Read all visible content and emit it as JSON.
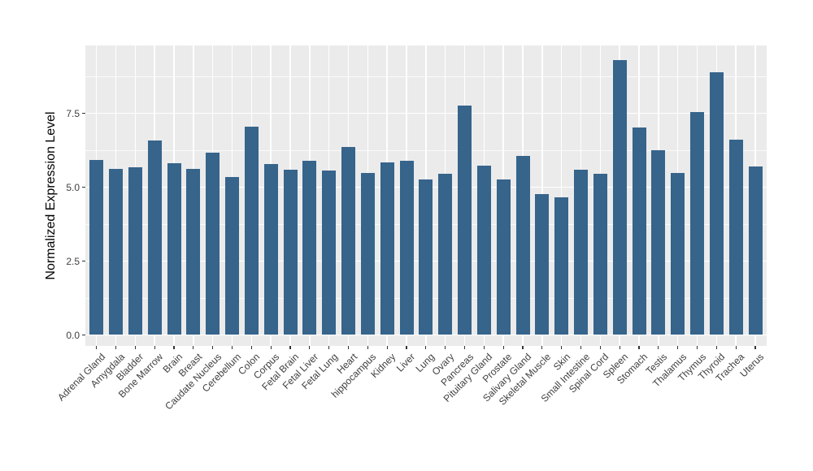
{
  "chart_data": {
    "type": "bar",
    "title": "",
    "xlabel": "",
    "ylabel": "Normalized Expression Level",
    "categories": [
      "Adrenal Gland",
      "Amygdala",
      "Bladder",
      "Bone Marrow",
      "Brain",
      "Breast",
      "Caudate Nucleus",
      "Cerebellum",
      "Colon",
      "Corpus",
      "Fetal Brain",
      "Fetal Liver",
      "Fetal Lung",
      "Heart",
      "hippocampus",
      "Kidney",
      "Liver",
      "Lung",
      "Ovary",
      "Pancreas",
      "Pituitary Gland",
      "Prostate",
      "Salivary Gland",
      "Skeletal Muscle",
      "Skin",
      "Small Intestine",
      "Spinal Cord",
      "Spleen",
      "Stomach",
      "Testis",
      "Thalamus",
      "Thymus",
      "Thyroid",
      "Trachea",
      "Uterus"
    ],
    "values": [
      5.91,
      5.63,
      5.66,
      6.59,
      5.82,
      5.63,
      6.18,
      5.33,
      7.06,
      5.77,
      5.6,
      5.88,
      5.55,
      6.37,
      5.47,
      5.85,
      5.88,
      5.27,
      5.44,
      7.75,
      5.74,
      5.25,
      6.07,
      4.78,
      4.67,
      5.6,
      5.44,
      9.31,
      7.03,
      6.24,
      5.49,
      7.53,
      8.9,
      6.62,
      5.69
    ],
    "ytick_labels": [
      "0.0",
      "2.5",
      "5.0",
      "7.5"
    ],
    "ytick_values": [
      0,
      2.5,
      5,
      7.5
    ],
    "yminor_values": [
      1.25,
      3.75,
      6.25,
      8.75
    ],
    "ylim": [
      -0.4,
      9.8
    ],
    "grid": true,
    "legend": false,
    "colors": {
      "bar": "#36648B",
      "panel_background": "#EBEBEB",
      "gridline": "#FFFFFF",
      "tick_text": "#404040",
      "axis_title": "#000000"
    }
  }
}
